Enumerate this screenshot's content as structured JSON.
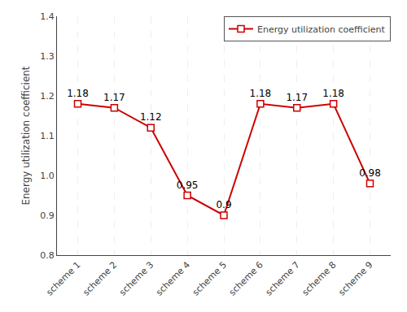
{
  "chart_data": {
    "type": "line",
    "categories": [
      "scheme 1",
      "scheme 2",
      "scheme 3",
      "scheme 4",
      "scheme 5",
      "scheme 6",
      "scheme 7",
      "scheme 8",
      "scheme 9"
    ],
    "series": [
      {
        "name": "Energy utilization coefficient",
        "color": "#cc0000",
        "marker": "square",
        "values": [
          1.18,
          1.17,
          1.12,
          0.95,
          0.9,
          1.18,
          1.17,
          1.18,
          0.98
        ]
      }
    ],
    "y_label": "Energy utilization coefficient",
    "ylim": [
      0.8,
      1.4
    ],
    "yticks": [
      0.8,
      0.9,
      {
        "value": 1.0,
        "label": "1.0"
      },
      1.1,
      1.2,
      1.3,
      1.4
    ],
    "data_labels": true,
    "grid": "x",
    "legend": "upper right"
  }
}
